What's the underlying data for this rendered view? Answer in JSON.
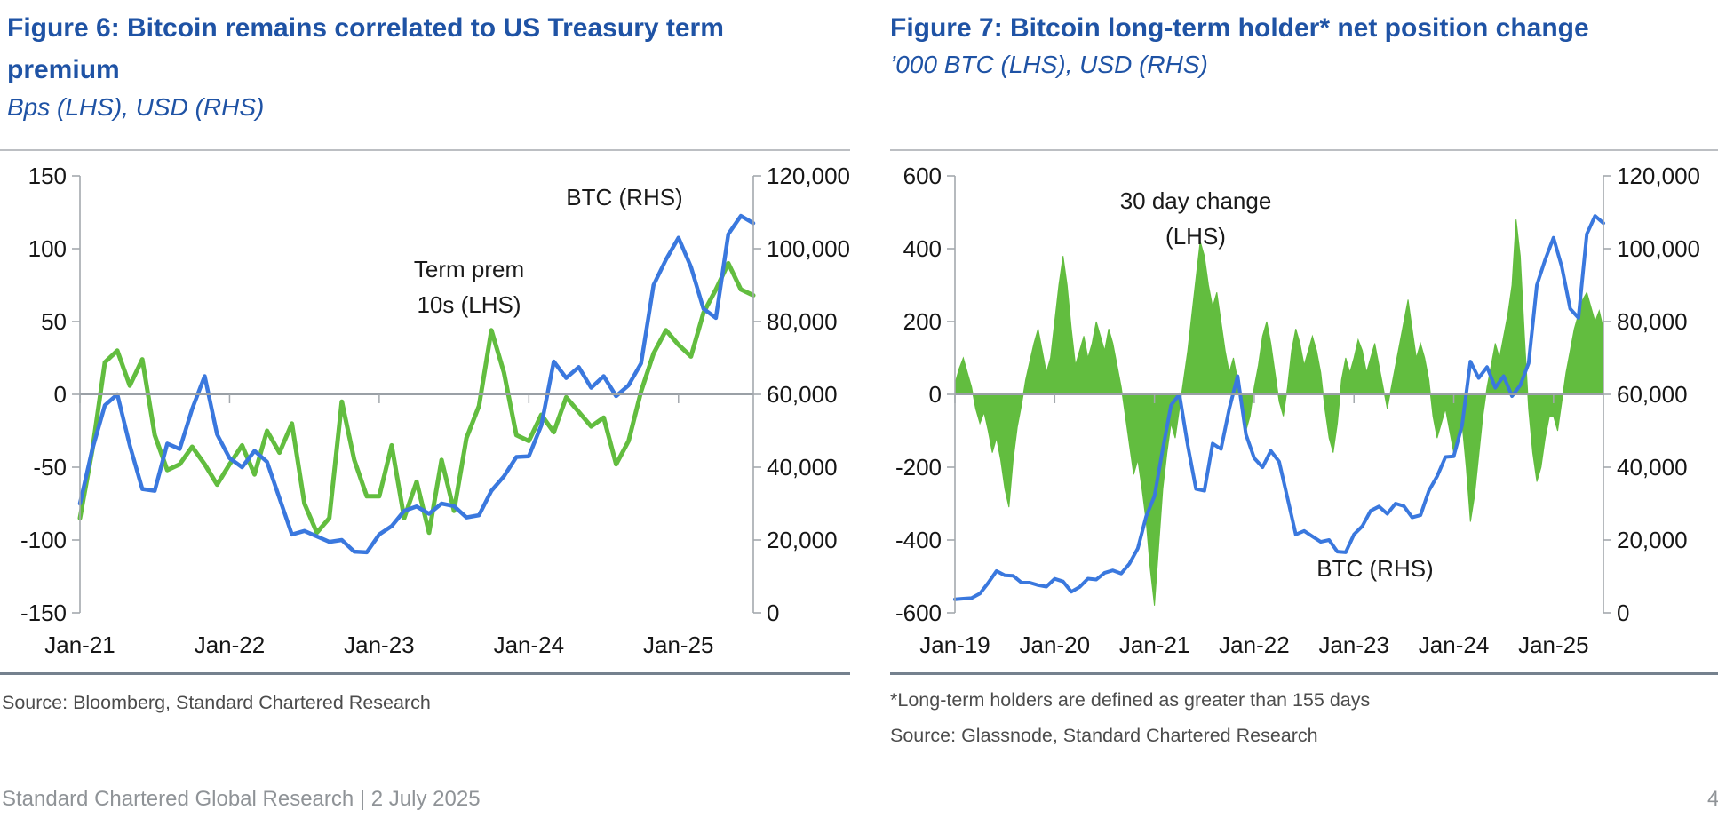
{
  "colors": {
    "accent_blue": "#1f53a5",
    "line_blue": "#3a78de",
    "green": "#62bd3f",
    "axis": "#a3a8ad",
    "zero_line": "#9aa0a6",
    "divider": "#75818e",
    "top_rule": "#bcbfc3",
    "axis_text": "#161616",
    "source_text": "#4c4c4c",
    "footer_text": "#8f9397"
  },
  "figures": [
    {
      "title": "Figure 6: Bitcoin remains correlated to US Treasury term premium",
      "subtitle": "Bps (LHS), USD (RHS)",
      "source": "Source: Bloomberg, Standard Chartered Research"
    },
    {
      "title": "Figure 7: Bitcoin long-term holder* net position change",
      "subtitle": "’000 BTC (LHS), USD (RHS)",
      "footnote": "*Long-term holders are defined as greater than 155 days",
      "source": "Source: Glassnode, Standard Chartered Research"
    }
  ],
  "footer": {
    "text": "Standard Chartered Global Research | 2 July 2025",
    "page_number": "4"
  },
  "chart_data": [
    {
      "type": "line",
      "title": "Figure 6: Bitcoin remains correlated to US Treasury term premium",
      "xlabel": "",
      "ylabel_left": "Bps (LHS)",
      "ylabel_right": "USD (RHS)",
      "grid": false,
      "legend_position": "in-plot annotations",
      "x_axis": {
        "range": [
          2021.0,
          2025.5
        ],
        "tick_years": [
          2021,
          2022,
          2023,
          2024,
          2025
        ],
        "labels": [
          "Jan-21",
          "Jan-22",
          "Jan-23",
          "Jan-24",
          "Jan-25"
        ]
      },
      "lhs": {
        "range": [
          -150,
          150
        ],
        "tick_labels": [
          "150",
          "100",
          "50",
          "0",
          "-50",
          "-100",
          "-150"
        ]
      },
      "rhs": {
        "range": [
          0,
          120000
        ],
        "tick_labels": [
          "120,000",
          "100,000",
          "80,000",
          "60,000",
          "40,000",
          "20,000",
          "0"
        ]
      },
      "annotations": {
        "btc": "BTC (RHS)",
        "term_line1": "Term prem",
        "term_line2": "10s (LHS)"
      },
      "series": [
        {
          "name": "Term prem 10s (LHS)",
          "axis": "lhs",
          "kind": "line",
          "color": "#62bd3f",
          "stroke_width": 5,
          "x_start": 2021.0,
          "x_step": 0.0833333,
          "values": [
            -85,
            -38,
            22,
            30,
            6,
            24,
            -28,
            -52,
            -48,
            -36,
            -48,
            -62,
            -48,
            -35,
            -55,
            -25,
            -40,
            -20,
            -75,
            -95,
            -85,
            -5,
            -45,
            -70,
            -70,
            -35,
            -85,
            -60,
            -95,
            -45,
            -80,
            -30,
            -8,
            44,
            15,
            -28,
            -32,
            -14,
            -26,
            -2,
            -12,
            -22,
            -16,
            -48,
            -32,
            2,
            28,
            44,
            34,
            26,
            56,
            72,
            90,
            72,
            68
          ]
        },
        {
          "name": "BTC (RHS)",
          "axis": "rhs",
          "kind": "line",
          "color": "#3a78de",
          "stroke_width": 4.5,
          "x_start": 2021.0,
          "x_step": 0.0833333,
          "values": [
            30000,
            45000,
            57000,
            60000,
            46000,
            34000,
            33500,
            46500,
            45000,
            56000,
            65000,
            49000,
            42500,
            40000,
            44500,
            41500,
            31500,
            21500,
            22500,
            21000,
            19500,
            20000,
            16800,
            16600,
            21500,
            23800,
            28000,
            29200,
            27200,
            30000,
            29300,
            26200,
            26800,
            33500,
            37500,
            42800,
            43000,
            51500,
            69000,
            64500,
            67500,
            61800,
            65000,
            59500,
            62500,
            68500,
            90000,
            97000,
            103000,
            95000,
            83500,
            81000,
            104000,
            109000,
            107000
          ]
        }
      ]
    },
    {
      "type": "area",
      "title": "Figure 7: Bitcoin long-term holder* net position change",
      "xlabel": "",
      "ylabel_left": "'000 BTC (LHS)",
      "ylabel_right": "USD (RHS)",
      "grid": false,
      "legend_position": "in-plot annotations",
      "x_axis": {
        "range": [
          2019.0,
          2025.5
        ],
        "tick_years": [
          2019,
          2020,
          2021,
          2022,
          2023,
          2024,
          2025
        ],
        "labels": [
          "Jan-19",
          "Jan-20",
          "Jan-21",
          "Jan-22",
          "Jan-23",
          "Jan-24",
          "Jan-25"
        ]
      },
      "lhs": {
        "range": [
          -600,
          600
        ],
        "tick_labels": [
          "600",
          "400",
          "200",
          "0",
          "-200",
          "-400",
          "-600"
        ]
      },
      "rhs": {
        "range": [
          0,
          120000
        ],
        "tick_labels": [
          "120,000",
          "100,000",
          "80,000",
          "60,000",
          "40,000",
          "20,000",
          "0"
        ]
      },
      "annotations": {
        "change_line1": "30 day change",
        "change_line2": "(LHS)",
        "btc": "BTC (RHS)"
      },
      "series": [
        {
          "name": "30 day change (LHS)",
          "axis": "lhs",
          "kind": "area",
          "color": "#62bd3f",
          "stroke_width": 1,
          "x_start": 2019.0,
          "x_step": 0.0416667,
          "values": [
            30,
            70,
            100,
            60,
            20,
            -40,
            -80,
            -50,
            -100,
            -160,
            -120,
            -180,
            -260,
            -310,
            -180,
            -90,
            -30,
            40,
            90,
            140,
            180,
            120,
            60,
            100,
            200,
            300,
            380,
            300,
            180,
            80,
            120,
            160,
            100,
            140,
            200,
            160,
            120,
            180,
            140,
            80,
            20,
            -60,
            -140,
            -220,
            -180,
            -260,
            -350,
            -480,
            -580,
            -420,
            -260,
            -160,
            -80,
            -120,
            -40,
            40,
            120,
            220,
            320,
            420,
            380,
            300,
            240,
            280,
            200,
            120,
            60,
            100,
            40,
            -40,
            -100,
            -60,
            20,
            80,
            160,
            200,
            140,
            60,
            -20,
            -60,
            20,
            120,
            180,
            140,
            80,
            120,
            160,
            120,
            60,
            -40,
            -120,
            -160,
            -80,
            40,
            100,
            60,
            100,
            150,
            120,
            60,
            100,
            140,
            80,
            20,
            -40,
            20,
            80,
            140,
            200,
            260,
            180,
            100,
            140,
            100,
            40,
            -60,
            -120,
            -80,
            -40,
            -100,
            -160,
            -120,
            -80,
            -200,
            -350,
            -280,
            -170,
            -60,
            20,
            80,
            140,
            100,
            160,
            220,
            300,
            480,
            380,
            160,
            -40,
            -160,
            -240,
            -200,
            -120,
            -60,
            -60,
            -100,
            -20,
            60,
            120,
            180,
            220,
            260,
            280,
            240,
            200,
            230,
            180
          ]
        },
        {
          "name": "BTC (RHS)",
          "axis": "rhs",
          "kind": "line",
          "color": "#3a78de",
          "stroke_width": 4,
          "x_start": 2019.0,
          "x_step": 0.0833333,
          "values": [
            3700,
            3900,
            4050,
            5300,
            8200,
            11500,
            10300,
            10200,
            8300,
            8300,
            7600,
            7200,
            9350,
            8600,
            5800,
            7100,
            9400,
            9150,
            11000,
            11650,
            10800,
            13500,
            17700,
            26500,
            32000,
            45000,
            57000,
            60000,
            46000,
            34000,
            33500,
            46500,
            45000,
            56000,
            65000,
            49000,
            42500,
            40000,
            44500,
            41500,
            31500,
            21500,
            22500,
            21000,
            19500,
            20000,
            16800,
            16600,
            21500,
            23800,
            28000,
            29200,
            27200,
            30000,
            29300,
            26200,
            26800,
            33500,
            37500,
            42800,
            43000,
            51500,
            69000,
            64500,
            67500,
            61800,
            65000,
            59500,
            62500,
            68500,
            90000,
            97000,
            103000,
            95000,
            83500,
            81000,
            104000,
            109000,
            107000
          ]
        }
      ]
    }
  ]
}
